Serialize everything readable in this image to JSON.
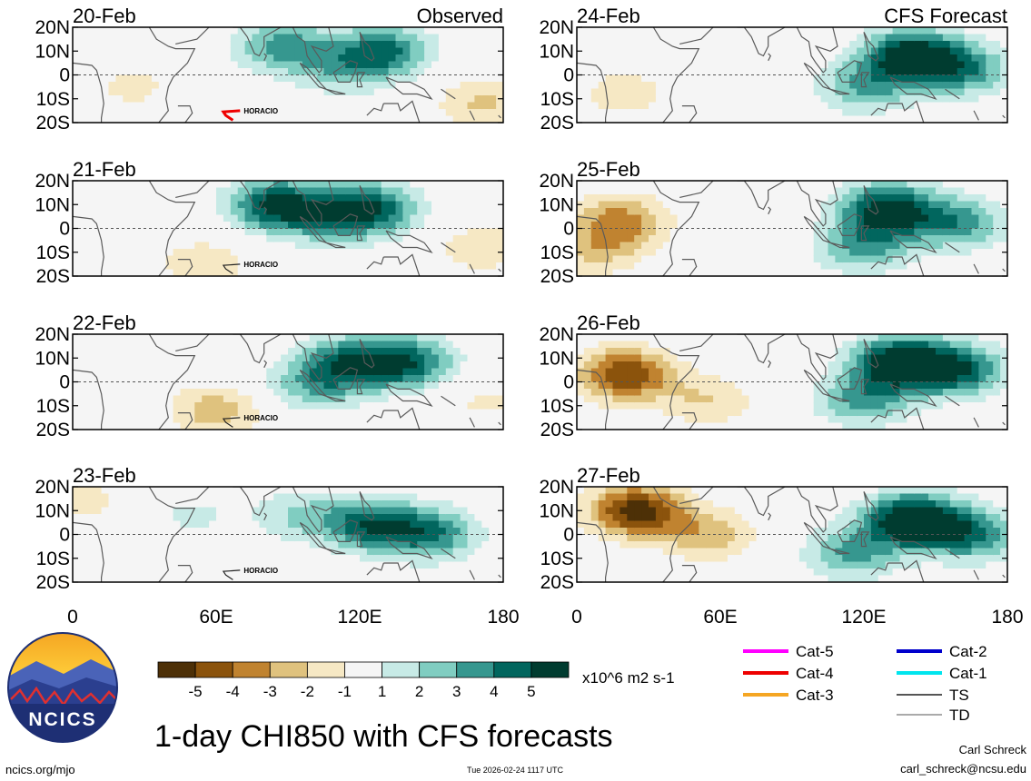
{
  "figure_title": "1-day CHI850 with CFS forecasts",
  "left_column_label": "Observed",
  "right_column_label": "CFS Forecast",
  "units_label": "x10^6 m2 s-1",
  "footer_left": "ncics.org/mjo",
  "footer_center": "Tue 2026-02-24 1117 UTC",
  "footer_right_name": "Carl Schreck",
  "footer_right_email": "carl_schreck@ncsu.edu",
  "logo_text": "NCICS",
  "colorbar": {
    "ticks": [
      "-5",
      "-4",
      "-3",
      "-2",
      "-1",
      "1",
      "2",
      "3",
      "4",
      "5"
    ],
    "colors": [
      "#4d3007",
      "#8b530c",
      "#c08330",
      "#dfc27e",
      "#f6e8c4",
      "#f5f5f5",
      "#c7eae6",
      "#80cdc1",
      "#36978f",
      "#01665e",
      "#003c30"
    ]
  },
  "legend": {
    "items": [
      {
        "label": "Cat-5",
        "color": "#ff00ff"
      },
      {
        "label": "Cat-4",
        "color": "#ee0000"
      },
      {
        "label": "Cat-3",
        "color": "#f5a623"
      },
      {
        "label": "Cat-2",
        "color": "#0000cc"
      },
      {
        "label": "Cat-1",
        "color": "#00e5ee"
      },
      {
        "label": "TS",
        "color": "#555555"
      },
      {
        "label": "TD",
        "color": "#aaaaaa"
      }
    ]
  },
  "chart_data": {
    "type": "heatmap",
    "variable": "1-day CHI850 (850-hPa velocity potential)",
    "units": "x10^6 m2 s-1",
    "x_range": [
      0,
      180
    ],
    "y_range": [
      -20,
      20
    ],
    "xticks": [
      "0",
      "60E",
      "120E",
      "180"
    ],
    "yticks": [
      "20N",
      "10N",
      "0",
      "10S",
      "20S"
    ],
    "panels": [
      {
        "date": "20-Feb",
        "source": "Observed",
        "storm": "HORACIO",
        "blobs": [
          {
            "lon": 88,
            "lat": 12,
            "v": 3.5
          },
          {
            "lon": 130,
            "lat": 10,
            "v": 4.2
          },
          {
            "lon": 112,
            "lat": 2,
            "v": 2.0
          },
          {
            "lon": 172,
            "lat": -12,
            "v": -2.2
          },
          {
            "lon": 25,
            "lat": -5,
            "v": -1.3
          }
        ]
      },
      {
        "date": "24-Feb",
        "source": "CFS Forecast",
        "blobs": [
          {
            "lon": 140,
            "lat": 8,
            "v": 6.0
          },
          {
            "lon": 120,
            "lat": -5,
            "v": 3.0
          },
          {
            "lon": 162,
            "lat": 2,
            "v": 3.5
          },
          {
            "lon": 20,
            "lat": -8,
            "v": -1.6
          }
        ]
      },
      {
        "date": "21-Feb",
        "source": "Observed",
        "storm": "HORACIO",
        "blobs": [
          {
            "lon": 85,
            "lat": 10,
            "v": 5.2
          },
          {
            "lon": 125,
            "lat": 8,
            "v": 4.8
          },
          {
            "lon": 105,
            "lat": 4,
            "v": 2.2
          },
          {
            "lon": 55,
            "lat": -15,
            "v": -1.8
          },
          {
            "lon": 172,
            "lat": -8,
            "v": -1.8
          }
        ]
      },
      {
        "date": "25-Feb",
        "source": "CFS Forecast",
        "blobs": [
          {
            "lon": 130,
            "lat": 8,
            "v": 5.8
          },
          {
            "lon": 160,
            "lat": 2,
            "v": 3.5
          },
          {
            "lon": 120,
            "lat": -8,
            "v": 3.2
          },
          {
            "lon": 18,
            "lat": 3,
            "v": -3.5
          },
          {
            "lon": 8,
            "lat": -10,
            "v": -2.0
          }
        ]
      },
      {
        "date": "22-Feb",
        "source": "Observed",
        "storm": "HORACIO",
        "blobs": [
          {
            "lon": 115,
            "lat": 8,
            "v": 4.2
          },
          {
            "lon": 140,
            "lat": 8,
            "v": 4.5
          },
          {
            "lon": 100,
            "lat": -2,
            "v": 2.5
          },
          {
            "lon": 60,
            "lat": -12,
            "v": -2.6
          },
          {
            "lon": 172,
            "lat": -8,
            "v": -1.2
          }
        ]
      },
      {
        "date": "26-Feb",
        "source": "CFS Forecast",
        "blobs": [
          {
            "lon": 135,
            "lat": 8,
            "v": 6.4
          },
          {
            "lon": 160,
            "lat": 5,
            "v": 4.5
          },
          {
            "lon": 120,
            "lat": -8,
            "v": 3.2
          },
          {
            "lon": 20,
            "lat": 3,
            "v": -5.0
          },
          {
            "lon": 55,
            "lat": -8,
            "v": -2.0
          }
        ]
      },
      {
        "date": "23-Feb",
        "source": "Observed",
        "storm": "HORACIO",
        "blobs": [
          {
            "lon": 125,
            "lat": 4,
            "v": 4.5
          },
          {
            "lon": 150,
            "lat": 0,
            "v": 3.8
          },
          {
            "lon": 95,
            "lat": 8,
            "v": 2.0
          },
          {
            "lon": 5,
            "lat": 14,
            "v": -1.3
          },
          {
            "lon": 50,
            "lat": 8,
            "v": 1.2
          }
        ]
      },
      {
        "date": "27-Feb",
        "source": "CFS Forecast",
        "blobs": [
          {
            "lon": 140,
            "lat": 6,
            "v": 6.6
          },
          {
            "lon": 165,
            "lat": 0,
            "v": 4.0
          },
          {
            "lon": 115,
            "lat": -8,
            "v": 3.2
          },
          {
            "lon": 25,
            "lat": 10,
            "v": -5.6
          },
          {
            "lon": 55,
            "lat": 0,
            "v": -2.6
          }
        ]
      }
    ]
  }
}
